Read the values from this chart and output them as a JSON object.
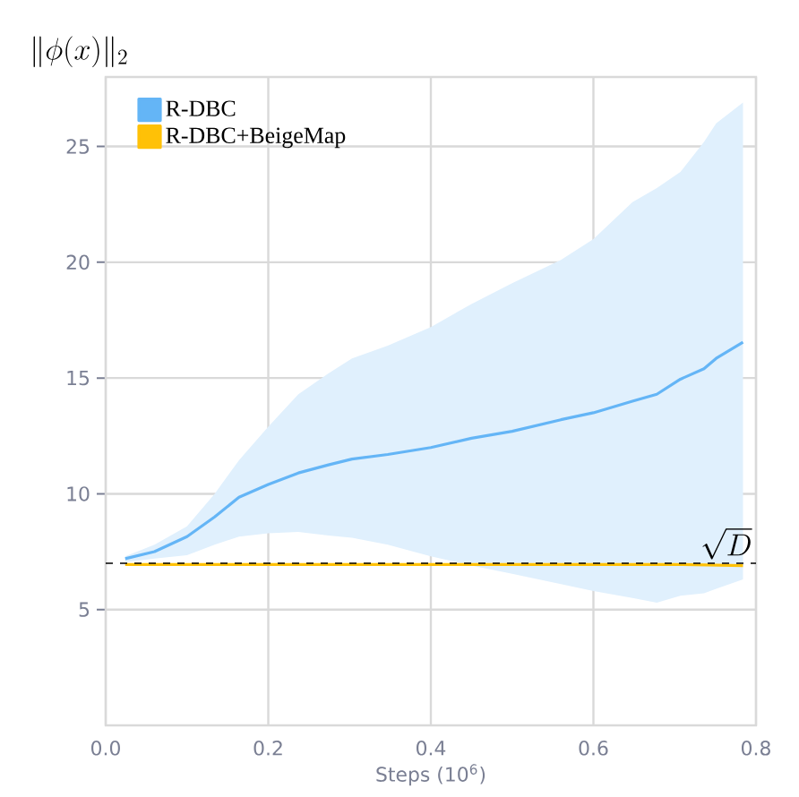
{
  "chart_data": {
    "type": "line",
    "ylabel": "\\|\\phi(x)\\|_2",
    "xlabel": "Steps (10$^{6}$)",
    "xlim": [
      0,
      0.8
    ],
    "ylim": [
      0,
      28
    ],
    "xticks": [
      {
        "value": 0,
        "label": "0.0"
      },
      0.2,
      0.4,
      0.6,
      0.8
    ],
    "yticks": [
      5,
      10,
      15,
      20,
      25
    ],
    "grid": true,
    "legend": "top left",
    "marker": "none",
    "line_style": "solid",
    "series": [
      {
        "name": "R-DBC",
        "color": "#64b5f6",
        "x": [
          0.024,
          0.06,
          0.1,
          0.134,
          0.164,
          0.2,
          0.237,
          0.274,
          0.303,
          0.347,
          0.4,
          0.45,
          0.5,
          0.56,
          0.6,
          0.648,
          0.678,
          0.707,
          0.736,
          0.751,
          0.784
        ],
        "values": [
          7.2,
          7.5,
          8.15,
          9.0,
          9.85,
          10.4,
          10.9,
          11.25,
          11.5,
          11.7,
          12.0,
          12.4,
          12.7,
          13.2,
          13.5,
          14.0,
          14.3,
          14.95,
          15.4,
          15.85,
          16.55
        ],
        "upper": [
          7.3,
          7.8,
          8.6,
          10.0,
          11.45,
          12.9,
          14.3,
          15.2,
          15.85,
          16.4,
          17.2,
          18.2,
          19.1,
          20.1,
          21.0,
          22.6,
          23.2,
          23.9,
          25.2,
          26.0,
          26.9
        ],
        "lower": [
          7.05,
          7.2,
          7.35,
          7.8,
          8.15,
          8.3,
          8.35,
          8.2,
          8.1,
          7.8,
          7.3,
          6.9,
          6.55,
          6.1,
          5.8,
          5.5,
          5.3,
          5.6,
          5.7,
          5.9,
          6.3
        ]
      },
      {
        "name": "R-DBC+BeigeMap",
        "color": "#ffc107",
        "x": [
          0.024,
          0.2,
          0.4,
          0.6,
          0.7,
          0.784
        ],
        "values": [
          6.95,
          6.95,
          6.95,
          6.95,
          6.95,
          6.9
        ]
      }
    ],
    "ref_lines": [
      {
        "axis": "y",
        "value": 7,
        "label": "\\sqrt{D}",
        "color": "#000000",
        "line_style": "dashed"
      }
    ]
  }
}
